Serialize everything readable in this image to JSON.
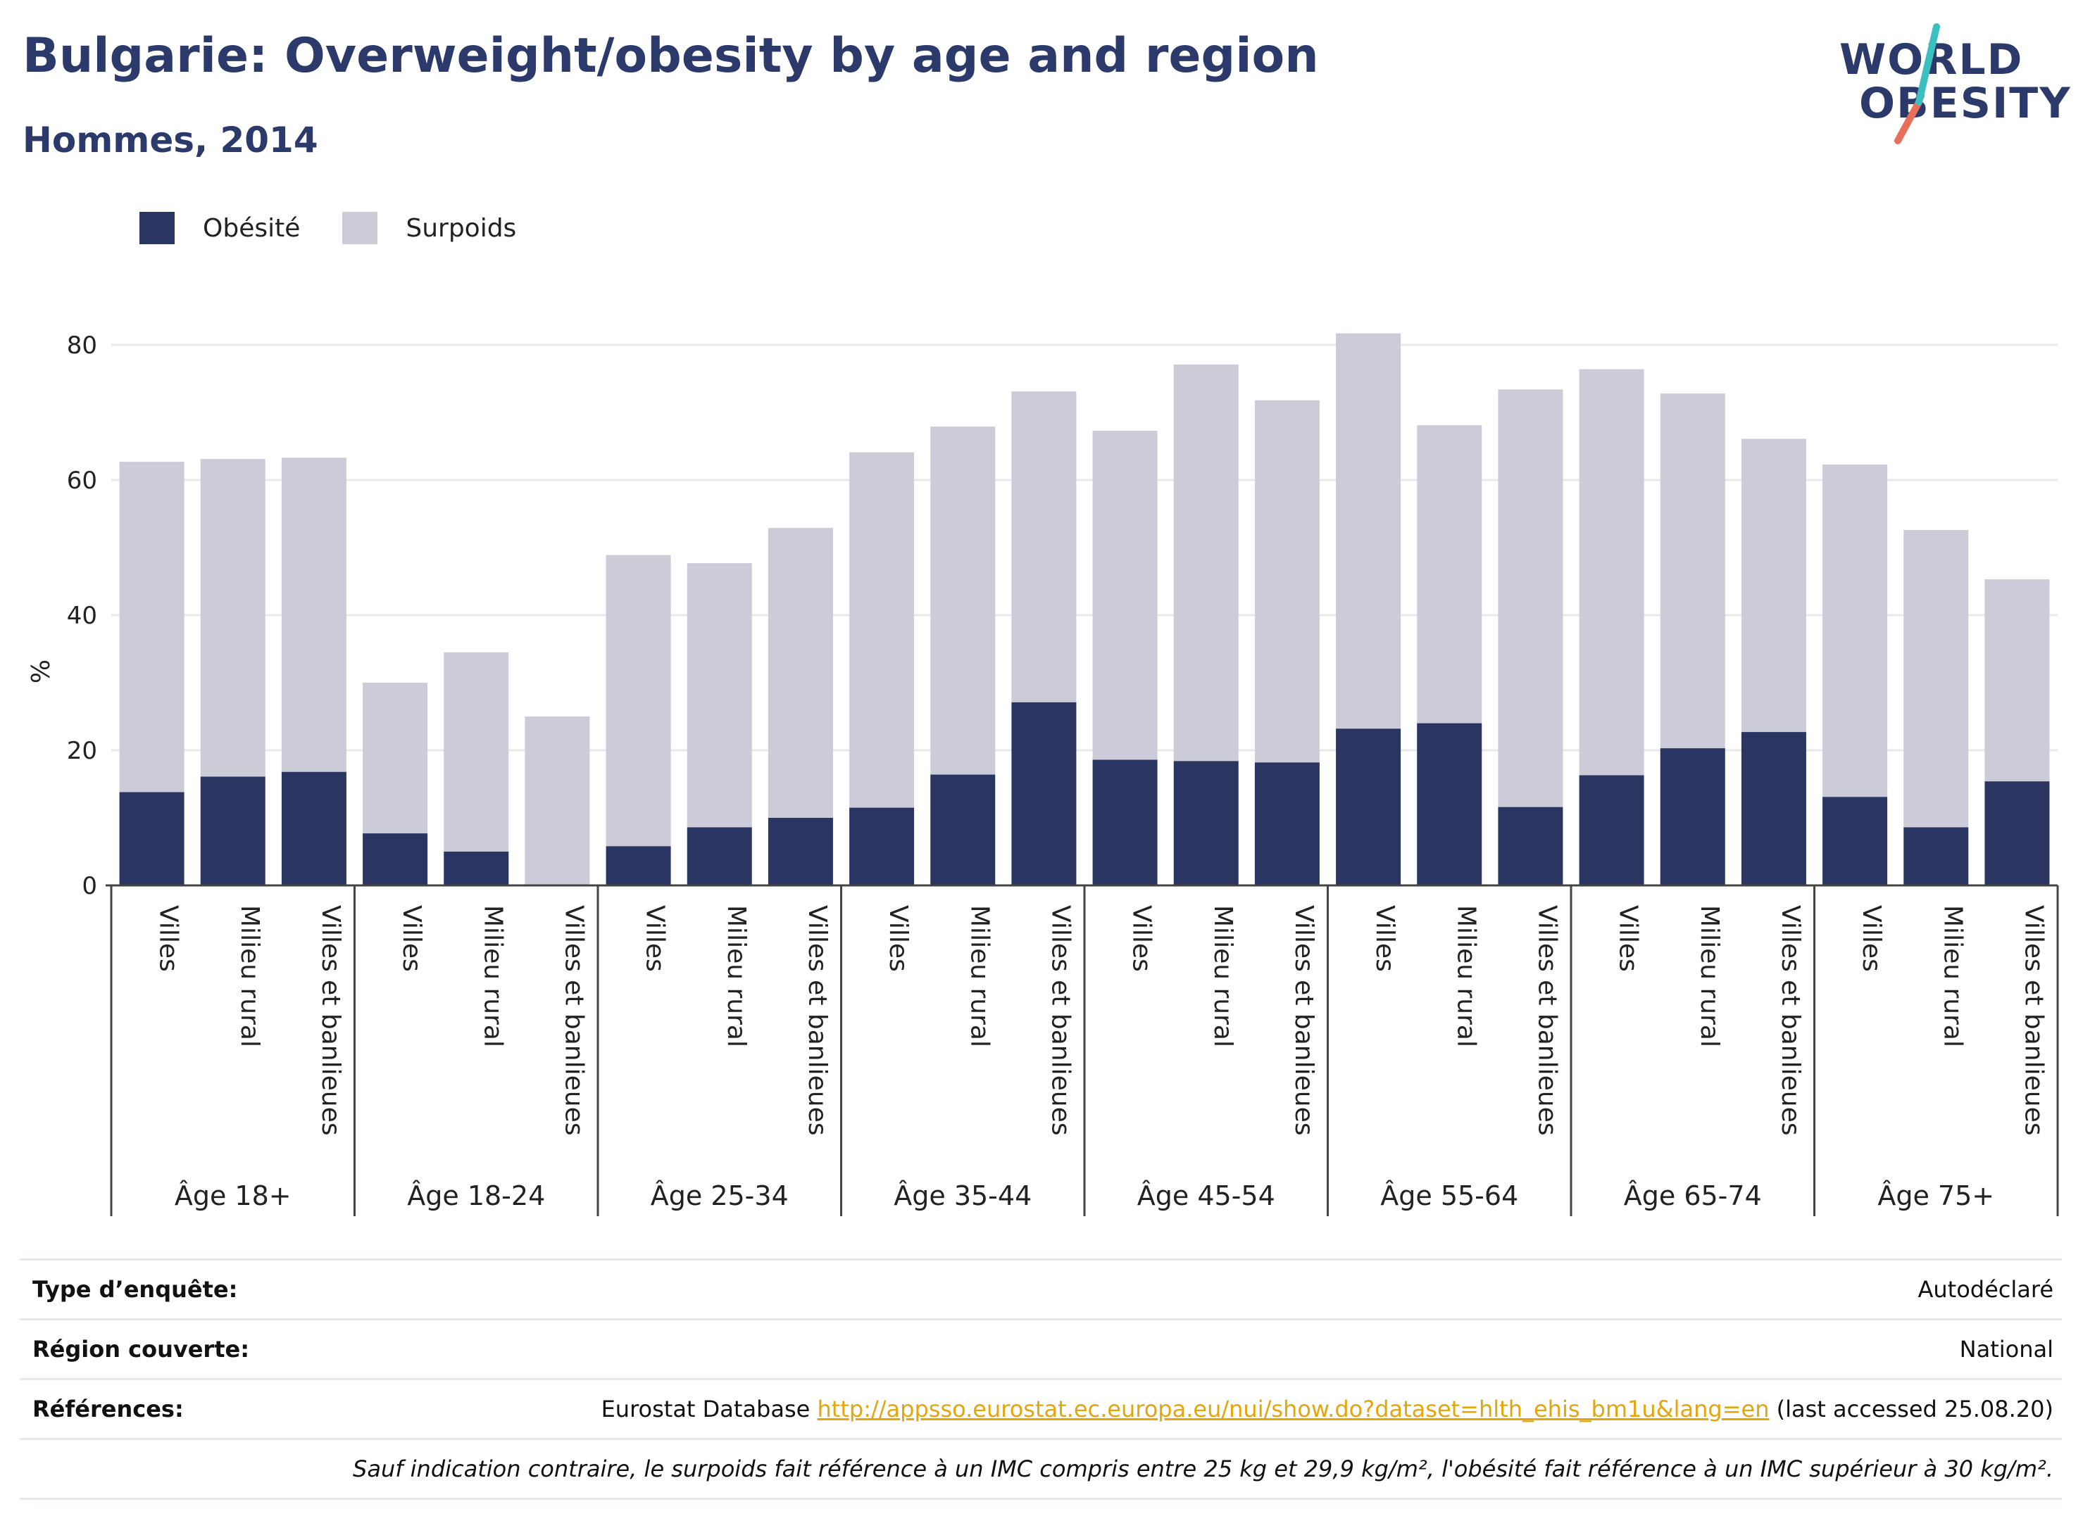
{
  "header": {
    "title": "Bulgarie: Overweight/obesity by age and region",
    "subtitle": "Hommes, 2014"
  },
  "logo": {
    "line1": "WORLD",
    "line2": "OBESITY"
  },
  "colors": {
    "obesity": "#2b3562",
    "overweight": "#cbccd8",
    "grid": "#e8e8ee",
    "axis": "#444444",
    "accent_teal": "#3bbfbf",
    "accent_red": "#e8705a",
    "brand": "#2b3a6b",
    "link": "#e3a60c"
  },
  "chart_data": {
    "type": "bar",
    "stacked": true,
    "ylabel": "%",
    "ylim": [
      0,
      85
    ],
    "yticks": [
      0,
      20,
      40,
      60,
      80
    ],
    "grid": true,
    "legend_position": "top-left",
    "groups": [
      "Âge 18+",
      "Âge 18-24",
      "Âge 25-34",
      "Âge 35-44",
      "Âge 45-54",
      "Âge 55-64",
      "Âge 65-74",
      "Âge 75+"
    ],
    "subcategories": [
      "Villes",
      "Milieu rural",
      "Villes et banlieues"
    ],
    "series": [
      {
        "name": "Obésité",
        "values": [
          13.8,
          16.1,
          16.8,
          7.7,
          5.0,
          0.0,
          5.8,
          8.6,
          10.0,
          11.5,
          16.4,
          27.1,
          18.6,
          18.4,
          18.2,
          23.2,
          24.0,
          11.6,
          16.3,
          20.3,
          22.7,
          13.1,
          8.6,
          15.4
        ]
      },
      {
        "name": "Surpoids",
        "values": [
          48.9,
          47.0,
          46.5,
          22.3,
          29.5,
          25.0,
          43.1,
          39.1,
          42.9,
          52.6,
          51.5,
          46.0,
          48.7,
          58.7,
          53.6,
          58.5,
          44.1,
          61.8,
          60.1,
          52.5,
          43.4,
          49.2,
          44.0,
          29.9
        ]
      }
    ]
  },
  "footer": {
    "rows": [
      {
        "key": "Type d’enquête:",
        "value": "Autodéclaré"
      },
      {
        "key": "Région couverte:",
        "value": "National"
      },
      {
        "key": "Références:",
        "value_prefix": "Eurostat Database ",
        "link": "http://appsso.eurostat.ec.europa.eu/nui/show.do?dataset=hlth_ehis_bm1u&lang=en",
        "value_suffix": " (last accessed 25.08.20)"
      }
    ],
    "note": "Sauf indication contraire, le surpoids fait référence à un IMC compris entre 25 kg et 29,9 kg/m², l'obésité fait référence à un IMC supérieur à 30 kg/m²."
  }
}
